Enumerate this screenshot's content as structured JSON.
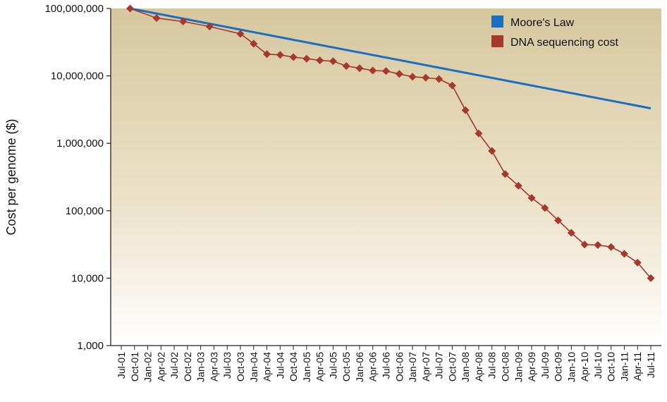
{
  "chart_data": {
    "type": "line",
    "ylabel": "Cost per genome ($)",
    "xlabel": "",
    "y_scale": "log",
    "ylim": [
      1000,
      100000000
    ],
    "y_ticks": [
      {
        "value": 1000,
        "label": "1,000"
      },
      {
        "value": 10000,
        "label": "10,000"
      },
      {
        "value": 100000,
        "label": "100,000"
      },
      {
        "value": 1000000,
        "label": "1,000,000"
      },
      {
        "value": 10000000,
        "label": "10,000,000"
      },
      {
        "value": 100000000,
        "label": "100,000,000"
      }
    ],
    "x": [
      "Jul-01",
      "Oct-01",
      "Jan-02",
      "Apr-02",
      "Jul-02",
      "Oct-02",
      "Jan-03",
      "Apr-03",
      "Jul-03",
      "Oct-03",
      "Jan-04",
      "Apr-04",
      "Jul-04",
      "Oct-04",
      "Jan-05",
      "Apr-05",
      "Jul-05",
      "Oct-05",
      "Jan-06",
      "Apr-06",
      "Jul-06",
      "Oct-06",
      "Jan-07",
      "Apr-07",
      "Jul-07",
      "Oct-07",
      "Jan-08",
      "Apr-08",
      "Jul-08",
      "Oct-08",
      "Jan-09",
      "Apr-09",
      "Jul-09",
      "Oct-09",
      "Jan-10",
      "Apr-10",
      "Jul-10",
      "Oct-10",
      "Jan-11",
      "Apr-11",
      "Jul-11"
    ],
    "grid": false,
    "legend": "top-right",
    "series": [
      {
        "name": "Moore's Law",
        "color": "#1a6fc0",
        "marker": "none",
        "points": [
          {
            "x": "Sep-01",
            "y": 100000000
          },
          {
            "x": "Jul-11",
            "y": 3300000
          }
        ]
      },
      {
        "name": "DNA sequencing cost",
        "color": "#a6382d",
        "marker": "diamond",
        "points": [
          {
            "x": "Sep-01",
            "y": 100000000
          },
          {
            "x": "Mar-02",
            "y": 72000000
          },
          {
            "x": "Sep-02",
            "y": 64000000
          },
          {
            "x": "Mar-03",
            "y": 54000000
          },
          {
            "x": "Oct-03",
            "y": 42000000
          },
          {
            "x": "Jan-04",
            "y": 30000000
          },
          {
            "x": "Apr-04",
            "y": 21000000
          },
          {
            "x": "Jul-04",
            "y": 20500000
          },
          {
            "x": "Oct-04",
            "y": 19000000
          },
          {
            "x": "Jan-05",
            "y": 18000000
          },
          {
            "x": "Apr-05",
            "y": 17000000
          },
          {
            "x": "Jul-05",
            "y": 16500000
          },
          {
            "x": "Oct-05",
            "y": 14000000
          },
          {
            "x": "Jan-06",
            "y": 13000000
          },
          {
            "x": "Apr-06",
            "y": 12000000
          },
          {
            "x": "Jul-06",
            "y": 11800000
          },
          {
            "x": "Oct-06",
            "y": 10700000
          },
          {
            "x": "Jan-07",
            "y": 9700000
          },
          {
            "x": "Apr-07",
            "y": 9400000
          },
          {
            "x": "Jul-07",
            "y": 9000000
          },
          {
            "x": "Oct-07",
            "y": 7200000
          },
          {
            "x": "Jan-08",
            "y": 3100000
          },
          {
            "x": "Apr-08",
            "y": 1400000
          },
          {
            "x": "Jul-08",
            "y": 770000
          },
          {
            "x": "Oct-08",
            "y": 350000
          },
          {
            "x": "Jan-09",
            "y": 235000
          },
          {
            "x": "Apr-09",
            "y": 155000
          },
          {
            "x": "Jul-09",
            "y": 110000
          },
          {
            "x": "Oct-09",
            "y": 72000
          },
          {
            "x": "Jan-10",
            "y": 47000
          },
          {
            "x": "Apr-10",
            "y": 31500
          },
          {
            "x": "Jul-10",
            "y": 31000
          },
          {
            "x": "Oct-10",
            "y": 29000
          },
          {
            "x": "Jan-11",
            "y": 23000
          },
          {
            "x": "Apr-11",
            "y": 17000
          },
          {
            "x": "Jul-11",
            "y": 10000
          }
        ]
      }
    ]
  }
}
